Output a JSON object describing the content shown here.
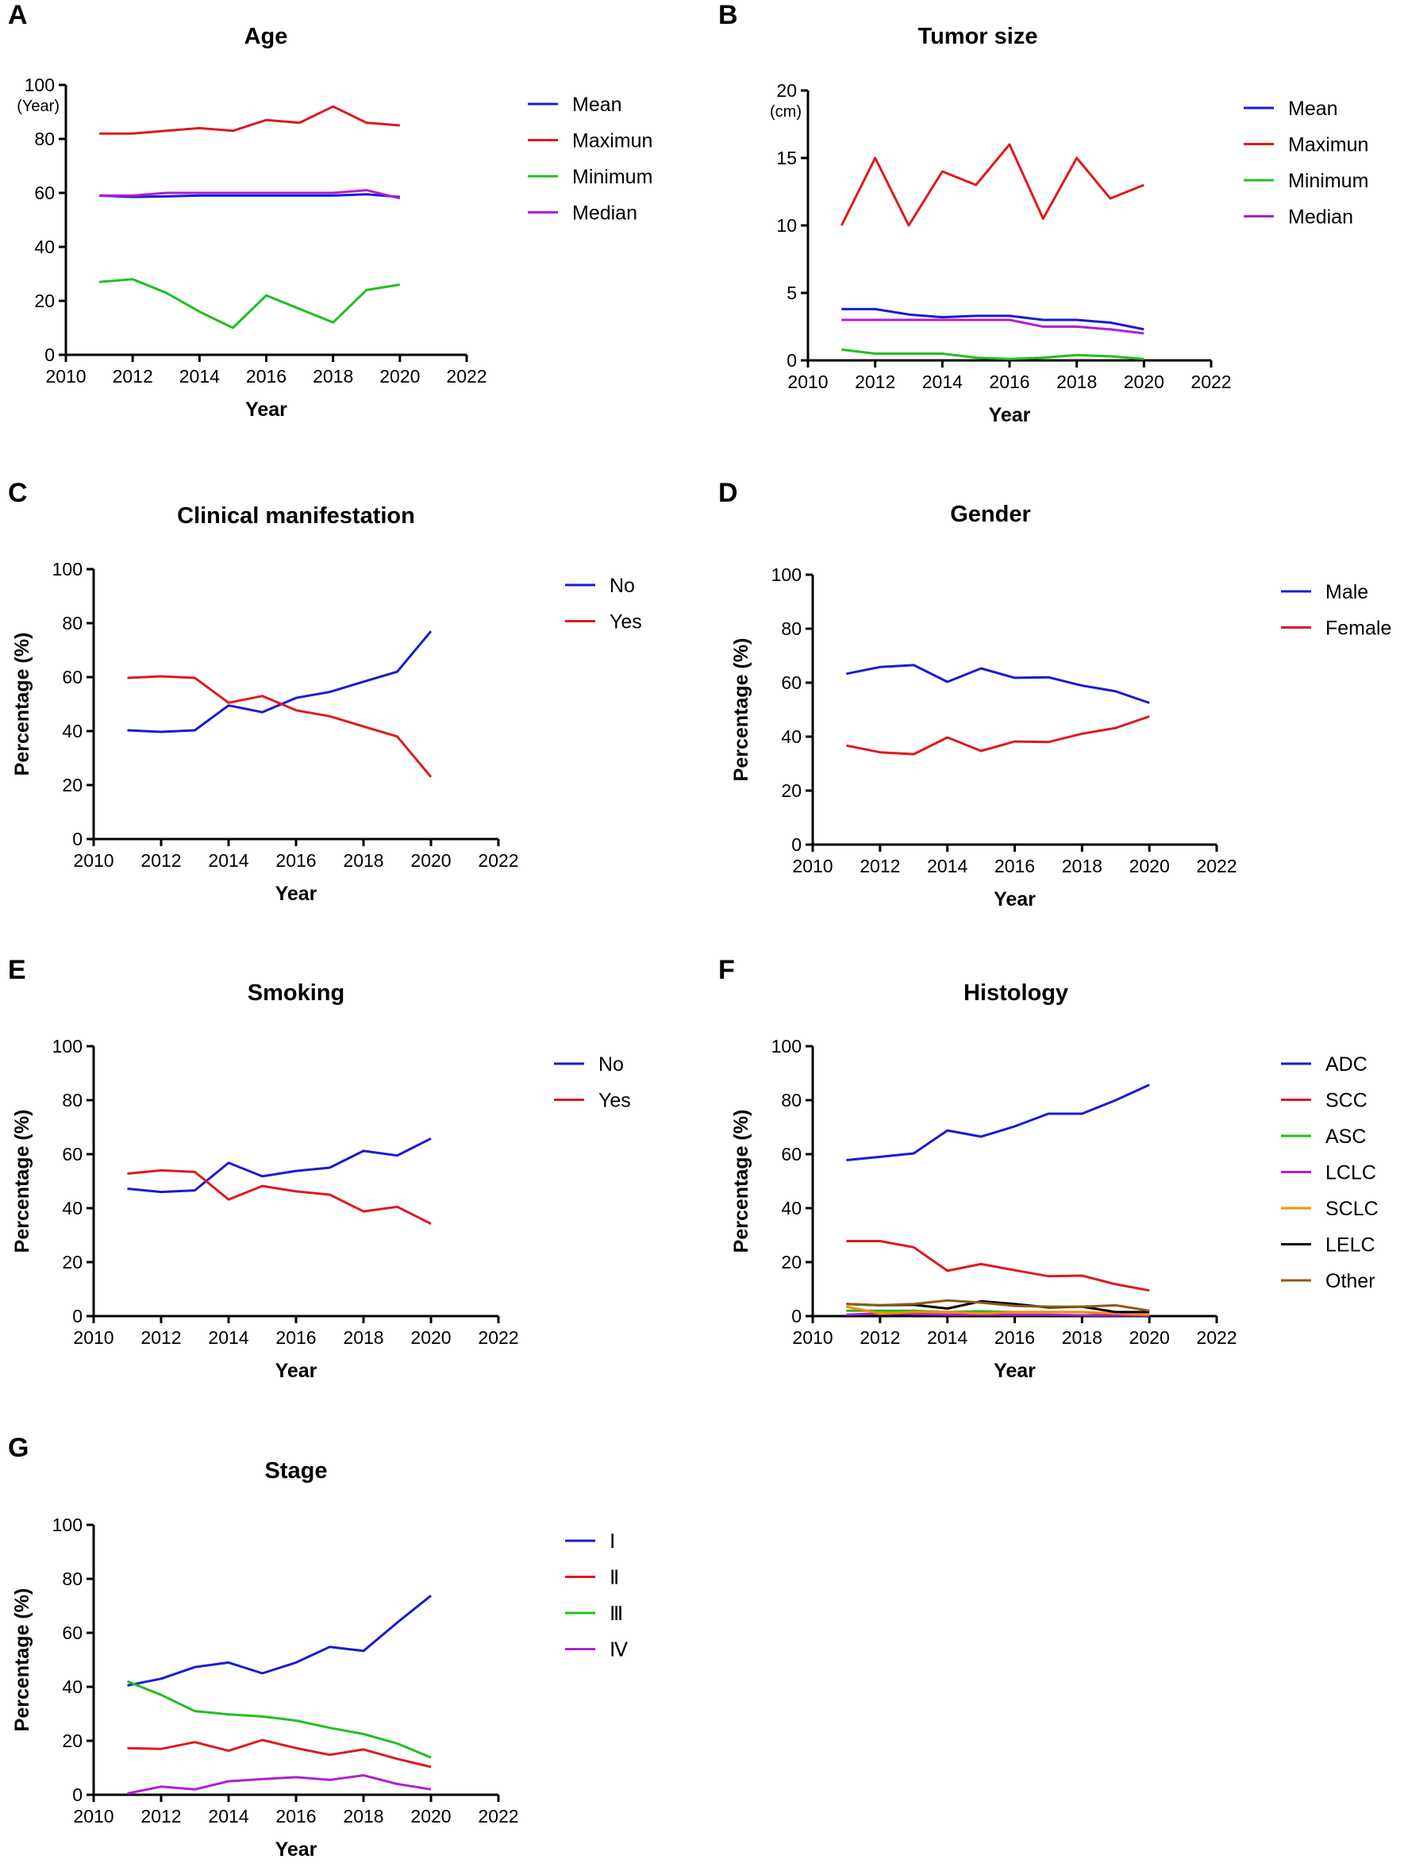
{
  "colors": {
    "blue": "#1a1ad6",
    "red": "#e0191b",
    "green": "#1fc01f",
    "purple": "#b01ed6",
    "orange": "#ff8c00",
    "black": "#000000",
    "brown": "#8b5a1a",
    "axis": "#000000"
  },
  "chart_data": [
    {
      "panel": "A",
      "type": "line",
      "title": "Age",
      "xlabel": "Year",
      "ylabel": "",
      "unit_label": "(Year)",
      "xlim": [
        2010,
        2022
      ],
      "ylim": [
        0,
        100
      ],
      "xticks": [
        2010,
        2012,
        2014,
        2016,
        2018,
        2020,
        2022
      ],
      "yticks": [
        0,
        20,
        40,
        60,
        80,
        100
      ],
      "x": [
        2011,
        2012,
        2013,
        2014,
        2015,
        2016,
        2017,
        2018,
        2019,
        2020
      ],
      "series": [
        {
          "name": "Mean",
          "color": "blue",
          "values": [
            59,
            58.5,
            58.7,
            59,
            59,
            59,
            59,
            59,
            59.5,
            58.5
          ]
        },
        {
          "name": "Maximun",
          "color": "red",
          "values": [
            82,
            82,
            83,
            84,
            83,
            87,
            86,
            92,
            86,
            85
          ]
        },
        {
          "name": "Minimum",
          "color": "green",
          "values": [
            27,
            28,
            23,
            16,
            10,
            22,
            17,
            12,
            24,
            26
          ]
        },
        {
          "name": "Median",
          "color": "purple",
          "values": [
            59,
            59,
            60,
            60,
            60,
            60,
            60,
            60,
            61,
            58
          ]
        }
      ]
    },
    {
      "panel": "B",
      "type": "line",
      "title": "Tumor size",
      "xlabel": "Year",
      "ylabel": "",
      "unit_label": "(cm)",
      "xlim": [
        2010,
        2022
      ],
      "ylim": [
        0,
        20
      ],
      "xticks": [
        2010,
        2012,
        2014,
        2016,
        2018,
        2020,
        2022
      ],
      "yticks": [
        0,
        5,
        10,
        15,
        20
      ],
      "x": [
        2011,
        2012,
        2013,
        2014,
        2015,
        2016,
        2017,
        2018,
        2019,
        2020
      ],
      "series": [
        {
          "name": "Mean",
          "color": "blue",
          "values": [
            3.8,
            3.8,
            3.4,
            3.2,
            3.3,
            3.3,
            3.0,
            3.0,
            2.8,
            2.3
          ]
        },
        {
          "name": "Maximun",
          "color": "red",
          "values": [
            10,
            15,
            10,
            14,
            13,
            16,
            10.5,
            15,
            12,
            13
          ]
        },
        {
          "name": "Minimum",
          "color": "green",
          "values": [
            0.8,
            0.5,
            0.5,
            0.5,
            0.2,
            0.1,
            0.2,
            0.4,
            0.3,
            0.1
          ]
        },
        {
          "name": "Median",
          "color": "purple",
          "values": [
            3,
            3,
            3,
            3,
            3,
            3,
            2.5,
            2.5,
            2.3,
            2
          ]
        }
      ]
    },
    {
      "panel": "C",
      "type": "line",
      "title": "Clinical manifestation",
      "xlabel": "Year",
      "ylabel": "Percentage (%)",
      "unit_label": "",
      "xlim": [
        2010,
        2022
      ],
      "ylim": [
        0,
        100
      ],
      "xticks": [
        2010,
        2012,
        2014,
        2016,
        2018,
        2020,
        2022
      ],
      "yticks": [
        0,
        20,
        40,
        60,
        80,
        100
      ],
      "x": [
        2011,
        2012,
        2013,
        2014,
        2015,
        2016,
        2017,
        2018,
        2019,
        2020
      ],
      "series": [
        {
          "name": "No",
          "color": "blue",
          "values": [
            40.3,
            39.7,
            40.3,
            49.5,
            47,
            52.3,
            54.5,
            58.3,
            62,
            77
          ]
        },
        {
          "name": "Yes",
          "color": "red",
          "values": [
            59.7,
            60.3,
            59.7,
            50.5,
            53,
            47.7,
            45.5,
            41.7,
            38,
            23
          ]
        }
      ]
    },
    {
      "panel": "D",
      "type": "line",
      "title": "Gender",
      "xlabel": "Year",
      "ylabel": "Percentage (%)",
      "unit_label": "",
      "xlim": [
        2010,
        2022
      ],
      "ylim": [
        0,
        100
      ],
      "xticks": [
        2010,
        2012,
        2014,
        2016,
        2018,
        2020,
        2022
      ],
      "yticks": [
        0,
        20,
        40,
        60,
        80,
        100
      ],
      "x": [
        2011,
        2012,
        2013,
        2014,
        2015,
        2016,
        2017,
        2018,
        2019,
        2020
      ],
      "series": [
        {
          "name": "Male",
          "color": "blue",
          "values": [
            63.3,
            65.8,
            66.5,
            60.3,
            65.3,
            61.8,
            62,
            58.9,
            56.8,
            52.5
          ]
        },
        {
          "name": "Female",
          "color": "red",
          "values": [
            36.7,
            34.2,
            33.5,
            39.7,
            34.7,
            38.2,
            38,
            41.1,
            43.2,
            47.5
          ]
        }
      ]
    },
    {
      "panel": "E",
      "type": "line",
      "title": "Smoking",
      "xlabel": "Year",
      "ylabel": "Percentage (%)",
      "unit_label": "",
      "xlim": [
        2010,
        2022
      ],
      "ylim": [
        0,
        100
      ],
      "xticks": [
        2010,
        2012,
        2014,
        2016,
        2018,
        2020,
        2022
      ],
      "yticks": [
        0,
        20,
        40,
        60,
        80,
        100
      ],
      "x": [
        2011,
        2012,
        2013,
        2014,
        2015,
        2016,
        2017,
        2018,
        2019,
        2020
      ],
      "series": [
        {
          "name": "No",
          "color": "blue",
          "values": [
            47.2,
            46,
            46.6,
            56.8,
            51.8,
            53.8,
            55,
            61.2,
            59.5,
            65.8
          ]
        },
        {
          "name": "Yes",
          "color": "red",
          "values": [
            52.8,
            54,
            53.4,
            43.2,
            48.2,
            46.2,
            45,
            38.8,
            40.5,
            34.2
          ]
        }
      ]
    },
    {
      "panel": "F",
      "type": "line",
      "title": "Histology",
      "xlabel": "Year",
      "ylabel": "Percentage (%)",
      "unit_label": "",
      "xlim": [
        2010,
        2022
      ],
      "ylim": [
        0,
        100
      ],
      "xticks": [
        2010,
        2012,
        2014,
        2016,
        2018,
        2020,
        2022
      ],
      "yticks": [
        0,
        20,
        40,
        60,
        80,
        100
      ],
      "x": [
        2011,
        2012,
        2013,
        2014,
        2015,
        2016,
        2017,
        2018,
        2019,
        2020
      ],
      "series": [
        {
          "name": "ADC",
          "color": "blue",
          "values": [
            57.8,
            59,
            60.3,
            68.8,
            66.5,
            70.3,
            75,
            75,
            80,
            85.7
          ]
        },
        {
          "name": "SCC",
          "color": "red",
          "values": [
            27.8,
            27.8,
            25.5,
            16.8,
            19.3,
            17,
            14.8,
            15,
            11.8,
            9.5
          ]
        },
        {
          "name": "ASC",
          "color": "green",
          "values": [
            2,
            2,
            2,
            1.5,
            1.8,
            1.5,
            1.5,
            1.5,
            0.5,
            0.3
          ]
        },
        {
          "name": "LCLC",
          "color": "purple",
          "values": [
            0.5,
            1,
            0.8,
            0.5,
            0.5,
            0.5,
            0.5,
            0.3,
            0.3,
            0.2
          ]
        },
        {
          "name": "SCLC",
          "color": "orange",
          "values": [
            3.5,
            1,
            1.5,
            1.5,
            1,
            1.5,
            1.5,
            1.5,
            1,
            0.5
          ]
        },
        {
          "name": "LELC",
          "color": "black",
          "values": [
            4.5,
            4,
            4.2,
            2.8,
            5.5,
            4.5,
            3.2,
            3.5,
            1.5,
            1.5
          ]
        },
        {
          "name": "Other",
          "color": "brown",
          "values": [
            4.5,
            4,
            4.5,
            5.8,
            5,
            3.8,
            3.5,
            3.5,
            4,
            2
          ]
        }
      ]
    },
    {
      "panel": "G",
      "type": "line",
      "title": "Stage",
      "xlabel": "Year",
      "ylabel": "Percentage (%)",
      "unit_label": "",
      "xlim": [
        2010,
        2022
      ],
      "ylim": [
        0,
        100
      ],
      "xticks": [
        2010,
        2012,
        2014,
        2016,
        2018,
        2020,
        2022
      ],
      "yticks": [
        0,
        20,
        40,
        60,
        80,
        100
      ],
      "x": [
        2011,
        2012,
        2013,
        2014,
        2015,
        2016,
        2017,
        2018,
        2019,
        2020
      ],
      "series": [
        {
          "name": "Ⅰ",
          "color": "blue",
          "values": [
            40.5,
            43,
            47.3,
            49,
            45,
            49,
            54.8,
            53.3,
            63.8,
            73.8
          ]
        },
        {
          "name": "Ⅱ",
          "color": "red",
          "values": [
            17.3,
            17,
            19.5,
            16.3,
            20.3,
            17.3,
            14.8,
            16.8,
            13.3,
            10.3
          ]
        },
        {
          "name": "Ⅲ",
          "color": "green",
          "values": [
            42,
            37,
            31,
            29.8,
            29,
            27.5,
            24.8,
            22.5,
            19,
            13.8
          ]
        },
        {
          "name": "Ⅳ",
          "color": "purple",
          "values": [
            0.5,
            3,
            2,
            5,
            5.8,
            6.5,
            5.5,
            7.2,
            4,
            2
          ]
        }
      ]
    }
  ]
}
